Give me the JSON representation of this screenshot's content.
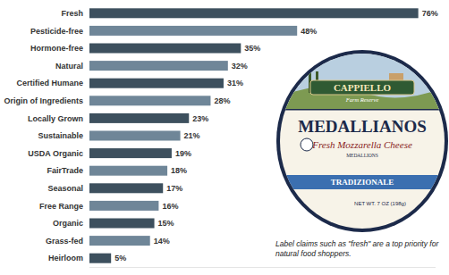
{
  "chart_data": {
    "type": "bar",
    "orientation": "horizontal",
    "categories": [
      "Fresh",
      "Pesticide-free",
      "Hormone-free",
      "Natural",
      "Certified Humane",
      "Origin of Ingredients",
      "Locally Grown",
      "Sustainable",
      "USDA Organic",
      "FairTrade",
      "Seasonal",
      "Free Range",
      "Organic",
      "Grass-fed",
      "Heirloom"
    ],
    "values": [
      76,
      48,
      35,
      32,
      31,
      28,
      23,
      21,
      19,
      18,
      17,
      16,
      15,
      14,
      5
    ],
    "value_labels": [
      "76%",
      "48%",
      "35%",
      "32%",
      "31%",
      "28%",
      "23%",
      "21%",
      "19%",
      "18%",
      "17%",
      "16%",
      "15%",
      "14%",
      "5%"
    ],
    "colors": [
      "#3d505e",
      "#6f8698",
      "#3d505e",
      "#6f8698",
      "#3d505e",
      "#6f8698",
      "#3d505e",
      "#6f8698",
      "#3d505e",
      "#6f8698",
      "#3d505e",
      "#6f8698",
      "#3d505e",
      "#6f8698",
      "#3d505e"
    ],
    "xlim": [
      0,
      80
    ],
    "data_labels": true,
    "tick_labels": false,
    "grid": false,
    "annotations": [
      "CAPPIELLO",
      "Farm Reserve",
      "MEDALLIANOS",
      "Fresh Mozzarella Cheese",
      "MEDALLIONS",
      "TRADIZIONALE",
      "NET WT. 7 OZ (198g)",
      "Label claims such as \"fresh\" are a top priority for natural food shoppers."
    ]
  }
}
